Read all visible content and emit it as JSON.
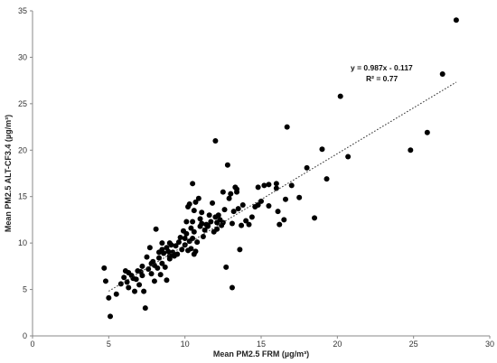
{
  "chart_data": {
    "type": "scatter",
    "title": "",
    "xlabel": "Mean PM2.5 FRM (µg/m³)",
    "ylabel": "Mean PM2.5 ALT-CF3.4 (µg/m³)",
    "xlim": [
      0,
      30
    ],
    "ylim": [
      0,
      35
    ],
    "xticks": [
      0,
      5,
      10,
      15,
      20,
      25,
      30
    ],
    "yticks": [
      0,
      5,
      10,
      15,
      20,
      25,
      30,
      35
    ],
    "grid": false,
    "marker_color": "#000000",
    "trendline": {
      "slope": 0.987,
      "intercept": -0.117,
      "x_range": [
        5,
        27.8
      ],
      "style": "dotted"
    },
    "annotations": [
      "y = 0.987x - 0.117",
      "R² = 0.77"
    ],
    "x": [
      4.7,
      4.8,
      5.0,
      5.1,
      5.5,
      5.8,
      6.0,
      6.1,
      6.2,
      6.3,
      6.3,
      6.5,
      6.6,
      6.7,
      6.8,
      6.9,
      7.0,
      7.1,
      7.2,
      7.2,
      7.4,
      7.5,
      7.6,
      7.7,
      7.8,
      7.8,
      7.9,
      8.0,
      8.0,
      8.1,
      8.2,
      8.3,
      8.3,
      8.4,
      8.5,
      8.5,
      8.6,
      8.7,
      8.8,
      8.8,
      8.9,
      9.0,
      9.0,
      9.1,
      9.2,
      9.3,
      9.4,
      9.5,
      9.6,
      9.7,
      9.8,
      9.9,
      10.0,
      10.0,
      10.1,
      10.1,
      10.2,
      10.2,
      10.3,
      10.3,
      10.4,
      10.4,
      10.5,
      10.5,
      10.6,
      10.6,
      10.7,
      10.7,
      10.8,
      10.9,
      11.0,
      11.0,
      11.1,
      11.1,
      11.2,
      11.3,
      11.4,
      11.5,
      11.6,
      11.7,
      11.8,
      11.9,
      12.0,
      12.0,
      12.1,
      12.1,
      12.2,
      12.3,
      12.4,
      12.5,
      12.6,
      12.7,
      12.8,
      12.9,
      13.0,
      13.1,
      13.2,
      13.3,
      13.4,
      13.5,
      13.6,
      13.7,
      13.8,
      14.0,
      14.2,
      14.4,
      14.6,
      14.8,
      15.0,
      15.2,
      15.5,
      15.5,
      16.0,
      16.1,
      16.2,
      16.5,
      16.6,
      16.7,
      17.0,
      17.5,
      18.0,
      18.5,
      19.0,
      19.3,
      20.2,
      20.7,
      24.8,
      25.9,
      26.9,
      27.8,
      10.6,
      12.5,
      9.0,
      8.5,
      11.5,
      13.1,
      16.0,
      14.8,
      13.4,
      10.5,
      7.3
    ],
    "y": [
      7.3,
      5.9,
      4.1,
      2.1,
      4.5,
      5.6,
      6.3,
      7.0,
      5.8,
      6.8,
      5.2,
      6.5,
      6.2,
      4.8,
      6.1,
      7.0,
      5.5,
      6.9,
      7.5,
      6.5,
      3.0,
      8.5,
      7.2,
      9.5,
      7.8,
      6.7,
      8.0,
      7.6,
      5.9,
      11.5,
      7.3,
      9.0,
      8.4,
      6.6,
      7.8,
      9.3,
      8.9,
      7.4,
      9.5,
      6.0,
      9.1,
      8.6,
      10.0,
      9.8,
      9.0,
      8.6,
      9.7,
      8.8,
      10.1,
      10.6,
      9.3,
      11.3,
      9.8,
      10.5,
      11.0,
      12.3,
      9.2,
      13.9,
      10.2,
      14.2,
      11.6,
      9.4,
      12.3,
      10.5,
      13.5,
      11.2,
      14.4,
      9.1,
      10.1,
      14.8,
      11.8,
      12.6,
      12.1,
      13.3,
      10.7,
      11.4,
      12.0,
      11.8,
      13.0,
      12.3,
      14.3,
      11.2,
      12.8,
      21.0,
      12.2,
      11.5,
      13.0,
      12.5,
      11.9,
      12.2,
      13.6,
      7.4,
      18.4,
      14.8,
      15.3,
      12.1,
      13.4,
      16.0,
      15.5,
      13.7,
      9.3,
      11.9,
      14.1,
      12.4,
      12.0,
      12.8,
      13.9,
      14.1,
      14.5,
      16.2,
      14.0,
      16.3,
      16.4,
      13.4,
      12.0,
      12.5,
      14.7,
      22.5,
      16.2,
      14.9,
      18.1,
      12.7,
      20.1,
      16.9,
      25.8,
      19.3,
      20.0,
      21.9,
      28.2,
      34.0,
      8.8,
      15.5,
      8.3,
      10.0,
      11.9,
      5.2,
      15.9,
      16.0,
      15.8,
      16.4,
      4.8
    ]
  }
}
